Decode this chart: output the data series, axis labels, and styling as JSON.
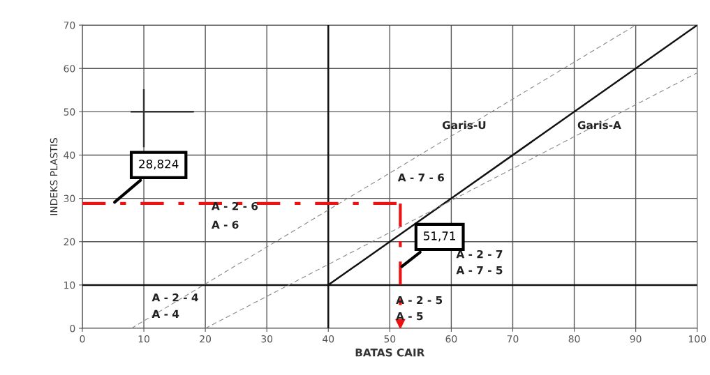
{
  "chart_data": {
    "type": "line",
    "xlabel": "BATAS CAIR",
    "ylabel": "INDEKS PLASTIS",
    "xlim": [
      0,
      100
    ],
    "ylim": [
      0,
      70
    ],
    "xticks": [
      0,
      10,
      20,
      30,
      40,
      50,
      60,
      70,
      80,
      90,
      100
    ],
    "yticks": [
      0,
      10,
      20,
      30,
      40,
      50,
      60,
      70
    ],
    "grid": true,
    "legend": false,
    "marker": "none",
    "series": [
      {
        "color": "#111111",
        "line_style": "solid",
        "x": [
          0,
          100
        ],
        "values": [
          10,
          10
        ]
      },
      {
        "color": "#111111",
        "line_style": "solid",
        "x": [
          40,
          40
        ],
        "values": [
          0,
          70
        ]
      },
      {
        "color": "#111111",
        "line_style": "solid",
        "x": [
          40,
          100
        ],
        "values": [
          10,
          70
        ]
      },
      {
        "color": "#888888",
        "line_style": "dashed",
        "x": [
          8,
          90
        ],
        "values": [
          0,
          70
        ]
      },
      {
        "color": "#888888",
        "line_style": "dashed",
        "x": [
          20,
          100
        ],
        "values": [
          0,
          59
        ]
      },
      {
        "color": "#333333",
        "line_style": "solid",
        "x": [
          10,
          10
        ],
        "values": [
          42,
          55
        ]
      },
      {
        "color": "#333333",
        "line_style": "solid",
        "x": [
          8,
          18
        ],
        "values": [
          50,
          50
        ]
      },
      {
        "color": "#ee1111",
        "line_style": "dashdot",
        "x": [
          0,
          51.71
        ],
        "values": [
          28.824,
          28.824
        ]
      },
      {
        "color": "#ee1111",
        "line_style": "dashdot",
        "marker": "triangle",
        "x": [
          51.71,
          51.71
        ],
        "values": [
          28.824,
          1
        ]
      }
    ],
    "annotations": [
      {
        "text": "28,824",
        "x": 5,
        "y": 28.824
      },
      {
        "text": "51,71",
        "x": 51.71,
        "y": 14
      },
      "A - 2 - 6",
      "A - 6",
      "A - 2 - 4",
      "A - 4",
      "A - 7 - 6",
      "A - 2 - 7",
      "A - 7 - 5",
      "A - 2 - 5",
      "A - 5",
      "Garis-U",
      "Garis-A"
    ]
  }
}
